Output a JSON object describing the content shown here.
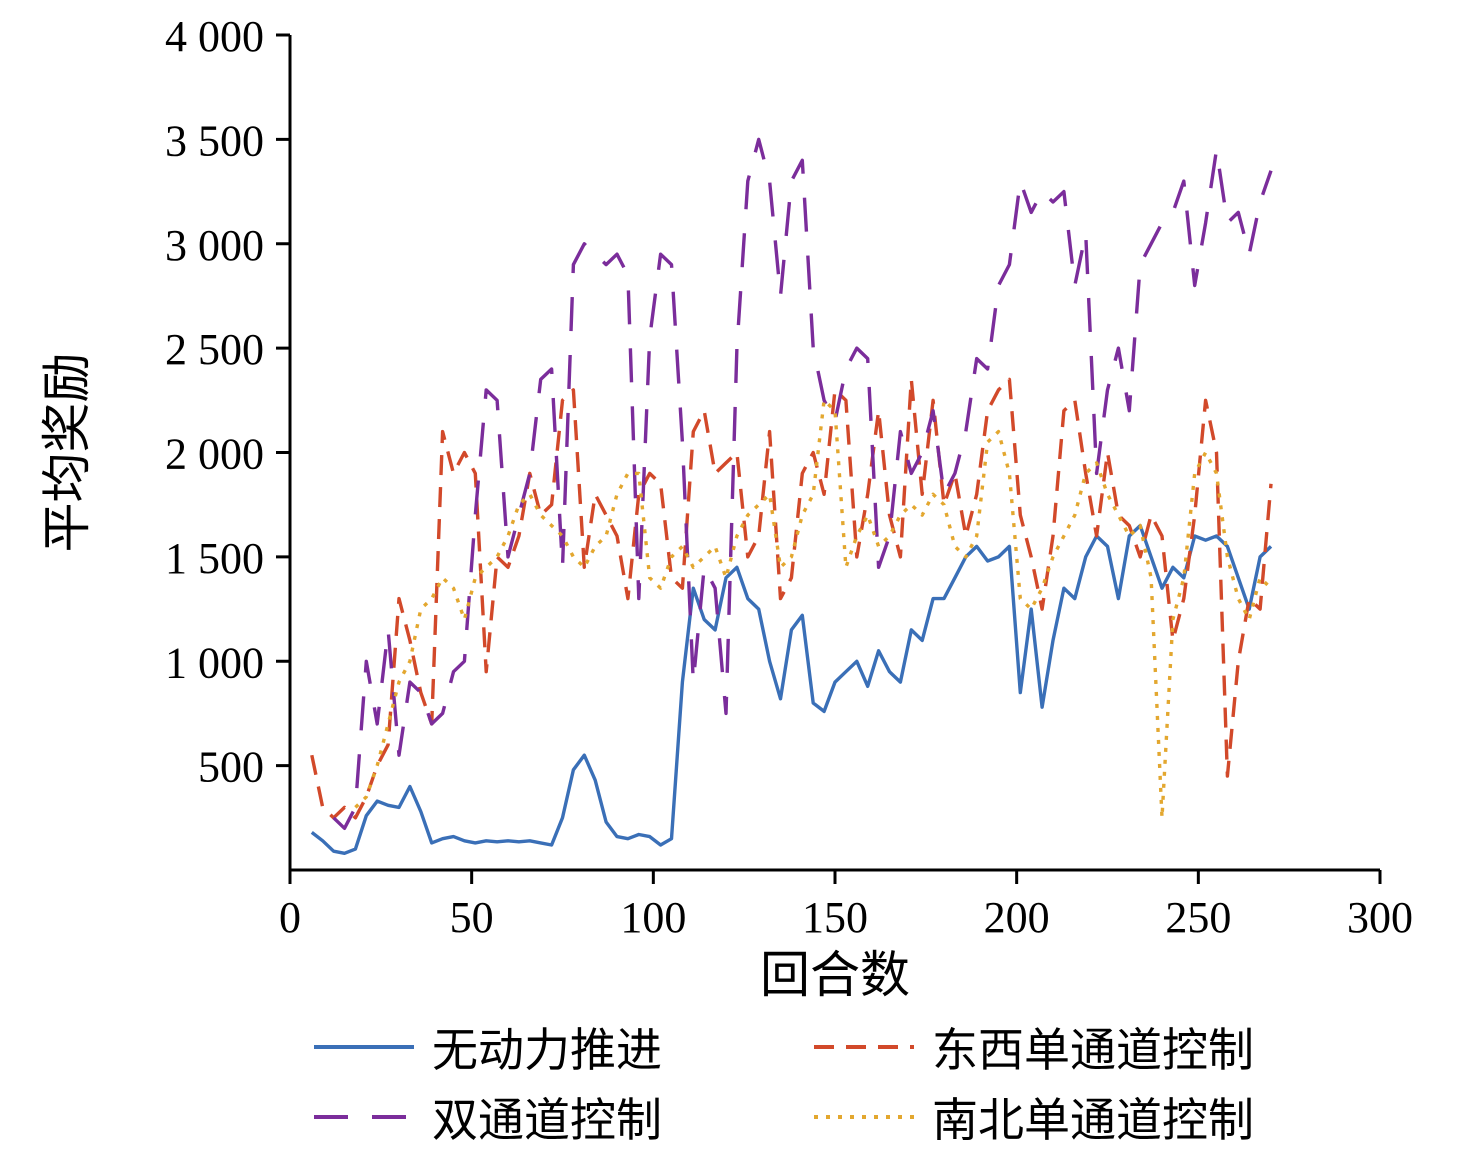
{
  "chart_data": {
    "type": "line",
    "title": "",
    "xlabel": "回合数",
    "ylabel": "平均奖励",
    "xlim": [
      0,
      300
    ],
    "ylim": [
      0,
      4000
    ],
    "grid": false,
    "legend_position": "bottom",
    "x_ticks": [
      0,
      50,
      100,
      150,
      200,
      250,
      300
    ],
    "x_tick_labels": [
      "0",
      "50",
      "100",
      "150",
      "200",
      "250",
      "300"
    ],
    "y_ticks": [
      500,
      1000,
      1500,
      2000,
      2500,
      3000,
      3500,
      4000
    ],
    "y_tick_labels": [
      "500",
      "1 000",
      "1 500",
      "2 000",
      "2 500",
      "3 000",
      "3 500",
      "4 000"
    ],
    "series": [
      {
        "name": "无动力推进",
        "color": "#3A6FB7",
        "dash": "solid",
        "x_start": 6,
        "x_step": 3,
        "values": [
          180,
          140,
          90,
          80,
          100,
          260,
          330,
          310,
          300,
          400,
          280,
          130,
          150,
          160,
          140,
          130,
          140,
          135,
          140,
          135,
          140,
          130,
          120,
          250,
          480,
          550,
          430,
          230,
          160,
          150,
          170,
          160,
          120,
          150,
          900,
          1350,
          1200,
          1150,
          1400,
          1450,
          1300,
          1250,
          1000,
          820,
          1150,
          1220,
          800,
          760,
          900,
          950,
          1000,
          880,
          1050,
          950,
          900,
          1150,
          1100,
          1300,
          1300,
          1400,
          1500,
          1550,
          1480,
          1500,
          1550,
          850,
          1250,
          780,
          1100,
          1350,
          1300,
          1500,
          1600,
          1550,
          1300,
          1600,
          1650,
          1500,
          1350,
          1450,
          1400,
          1600,
          1580,
          1600,
          1550,
          1400,
          1250,
          1500,
          1550
        ]
      },
      {
        "name": "东西单通道控制",
        "color": "#D2492A",
        "dash": "dash",
        "x_start": 6,
        "x_step": 3,
        "values": [
          550,
          300,
          250,
          300,
          250,
          350,
          500,
          600,
          1300,
          1100,
          850,
          700,
          2100,
          1900,
          2000,
          1900,
          950,
          1500,
          1450,
          1600,
          1900,
          1700,
          1750,
          2250,
          2300,
          1450,
          1800,
          1700,
          1600,
          1300,
          1800,
          1900,
          1850,
          1400,
          1350,
          2100,
          2200,
          1900,
          1950,
          2000,
          1500,
          1600,
          2100,
          1300,
          1400,
          1900,
          2000,
          1800,
          2300,
          2250,
          1500,
          1800,
          2200,
          1700,
          1500,
          2350,
          1800,
          2250,
          1750,
          1900,
          1600,
          1800,
          2200,
          2300,
          2350,
          1700,
          1500,
          1250,
          1600,
          2200,
          2250,
          1900,
          1600,
          2000,
          1700,
          1650,
          1500,
          1700,
          1600,
          1100,
          1300,
          1700,
          2250,
          2000,
          450,
          1000,
          1300,
          1250,
          1850
        ]
      },
      {
        "name": "双通道控制",
        "color": "#7B2D9B",
        "dash": "longdash",
        "x_start": 12,
        "x_step": 3,
        "values": [
          250,
          200,
          300,
          1000,
          700,
          1150,
          550,
          900,
          850,
          700,
          750,
          950,
          1000,
          1700,
          2300,
          2250,
          1500,
          1700,
          1900,
          2350,
          2400,
          1450,
          2900,
          3000,
          2950,
          2900,
          2950,
          2850,
          1300,
          2550,
          2950,
          2900,
          2050,
          900,
          1450,
          1350,
          750,
          2500,
          3300,
          3500,
          3300,
          2750,
          3300,
          3400,
          2500,
          2250,
          2150,
          2400,
          2500,
          2450,
          1450,
          1600,
          2100,
          1900,
          2000,
          2200,
          1800,
          1900,
          2100,
          2450,
          2400,
          2800,
          2900,
          3300,
          3150,
          3250,
          3200,
          3250,
          2800,
          3050,
          1900,
          2300,
          2500,
          2200,
          2900,
          3000,
          3100,
          3150,
          3300,
          2800,
          3100,
          3450,
          3100,
          3150,
          2950,
          3200,
          3350
        ]
      },
      {
        "name": "南北单通道控制",
        "color": "#E3A72F",
        "dash": "dot",
        "x_start": 18,
        "x_step": 3,
        "values": [
          300,
          350,
          500,
          700,
          900,
          1000,
          1250,
          1300,
          1400,
          1350,
          1200,
          1400,
          1450,
          1500,
          1600,
          1750,
          1800,
          1700,
          1650,
          1600,
          1500,
          1450,
          1550,
          1600,
          1800,
          1900,
          1900,
          1400,
          1350,
          1500,
          1550,
          1450,
          1500,
          1550,
          1400,
          1600,
          1700,
          1750,
          1800,
          1450,
          1500,
          1700,
          1800,
          2250,
          2200,
          1450,
          1600,
          1700,
          1550,
          1600,
          1700,
          1750,
          1700,
          1800,
          1750,
          1550,
          1500,
          1600,
          2050,
          2100,
          1900,
          1300,
          1250,
          1350,
          1500,
          1600,
          1700,
          1900,
          1950,
          1800,
          1700,
          1600,
          1650,
          1400,
          250,
          1200,
          1400,
          1900,
          2000,
          1900,
          1500,
          1300,
          1200,
          1400,
          1350
        ]
      }
    ]
  }
}
